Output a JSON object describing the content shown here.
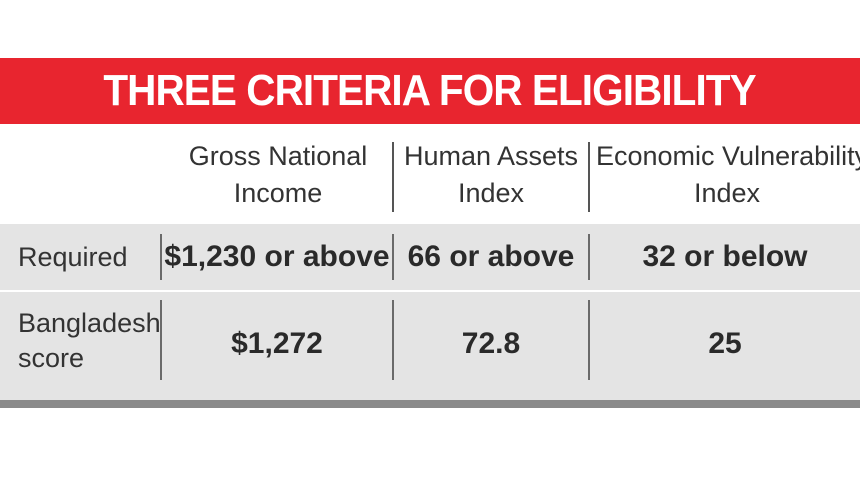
{
  "title": "THREE CRITERIA FOR ELIGIBILITY",
  "columns": [
    {
      "line1": "Gross National",
      "line2": "Income"
    },
    {
      "line1": "Human Assets",
      "line2": "Index"
    },
    {
      "line1": "Economic Vulnerability",
      "line2": "Index"
    }
  ],
  "rows": [
    {
      "label_line1": "Required",
      "label_line2": "",
      "values": [
        "$1,230 or above",
        "66 or above",
        "32 or below"
      ]
    },
    {
      "label_line1": "Bangladesh",
      "label_line2": "score",
      "values": [
        "$1,272",
        "72.8",
        "25"
      ]
    }
  ],
  "colors": {
    "banner": "#e8252f",
    "table_background": "#e4e4e4",
    "bottom_rule": "#8a8a8a"
  }
}
